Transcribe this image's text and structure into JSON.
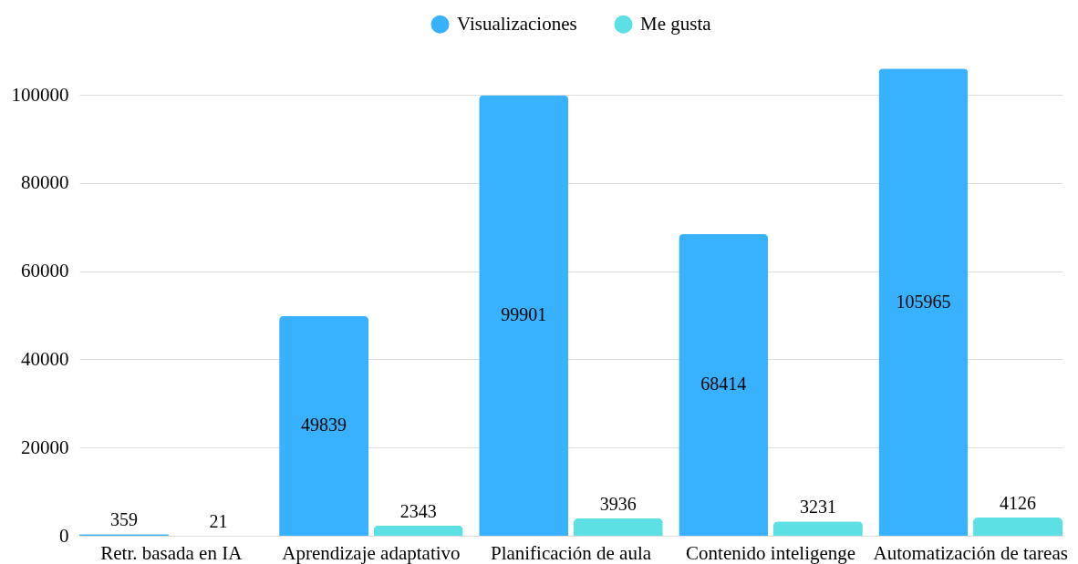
{
  "chart_data": {
    "type": "bar",
    "categories": [
      "Retr. basada en IA",
      "Aprendizaje adaptativo",
      "Planificación de aula",
      "Contenido inteligenge",
      "Automatización de tareas"
    ],
    "series": [
      {
        "name": "Visualizaciones",
        "color": "#38b2ff",
        "values": [
          359,
          49839,
          99901,
          68414,
          105965
        ]
      },
      {
        "name": "Me gusta",
        "color": "#5ce0e4",
        "values": [
          21,
          2343,
          3936,
          3231,
          4126
        ]
      }
    ],
    "ylim": [
      0,
      106000
    ],
    "yticks": [
      0,
      20000,
      40000,
      60000,
      80000,
      100000
    ],
    "grid": "y",
    "legend": "top",
    "data_labels": true
  }
}
